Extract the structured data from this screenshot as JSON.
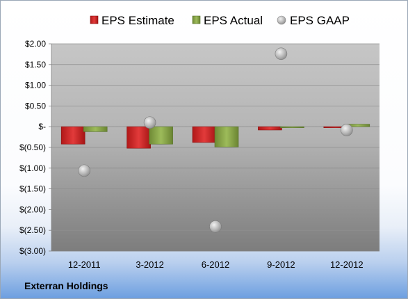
{
  "company": "Exterran Holdings",
  "colors": {
    "estimate": "#d42a2a",
    "actual": "#8fab4f",
    "gaap": "#b3b3b3"
  },
  "chart_data": {
    "type": "bar",
    "categories": [
      "12-2011",
      "3-2012",
      "6-2012",
      "9-2012",
      "12-2012"
    ],
    "series": [
      {
        "name": "EPS Estimate",
        "kind": "bar",
        "values": [
          -0.42,
          -0.52,
          -0.38,
          -0.08,
          -0.01
        ]
      },
      {
        "name": "EPS Actual",
        "kind": "bar",
        "values": [
          -0.12,
          -0.42,
          -0.49,
          -0.01,
          0.06
        ]
      },
      {
        "name": "EPS GAAP",
        "kind": "marker",
        "values": [
          -1.06,
          0.1,
          -2.41,
          1.76,
          -0.08
        ]
      }
    ],
    "ylim": [
      -3.0,
      2.0
    ],
    "yticks": [
      2.0,
      1.5,
      1.0,
      0.5,
      0.0,
      -0.5,
      -1.0,
      -1.5,
      -2.0,
      -2.5,
      -3.0
    ],
    "ytick_labels": [
      "$2.00",
      "$1.50",
      "$1.00",
      "$0.50",
      "$-",
      "$(0.50)",
      "$(1.00)",
      "$(1.50)",
      "$(2.00)",
      "$(2.50)",
      "$(3.00)"
    ],
    "legend_position": "top",
    "grid": true
  }
}
